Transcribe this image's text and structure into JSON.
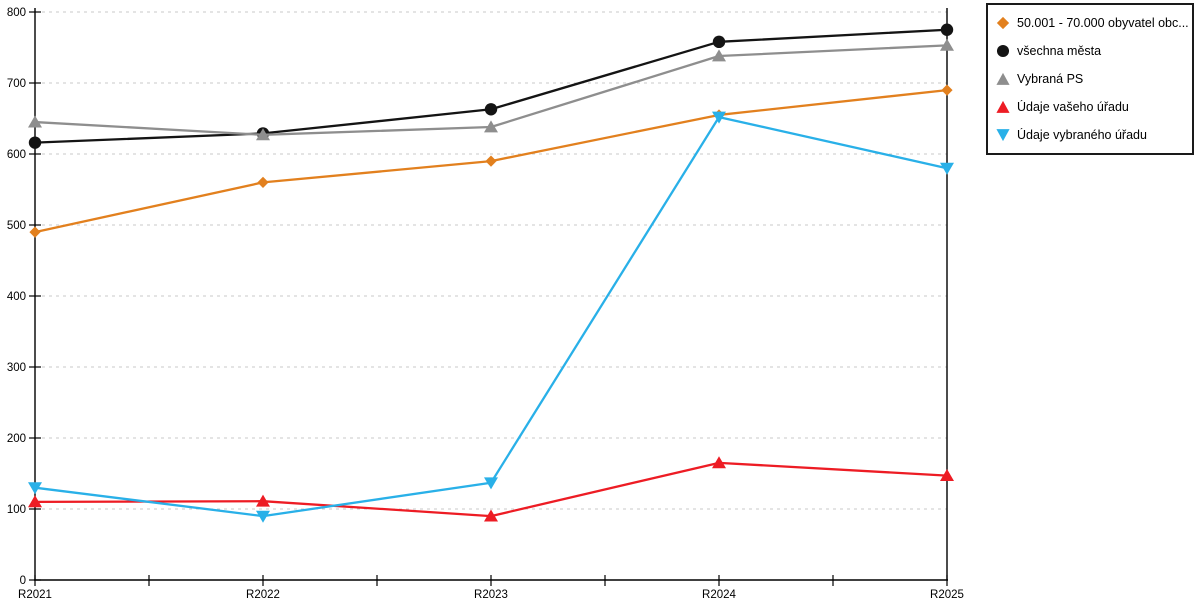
{
  "chart_data": {
    "type": "line",
    "categories": [
      "R2021",
      "R2022",
      "R2023",
      "R2024",
      "R2025"
    ],
    "y_ticks": [
      0,
      100,
      200,
      300,
      400,
      500,
      600,
      700,
      800
    ],
    "ylim": [
      0,
      800
    ],
    "grid": "horizontal-dashed",
    "gridline_color": "#c8c8c8",
    "axis_color": "#000000",
    "legend_position": "top-right",
    "series": [
      {
        "name": "50.001 - 70.000 obyvatel obc...",
        "marker": "diamond",
        "color": "#E2801E",
        "values": [
          490,
          560,
          590,
          655,
          690
        ]
      },
      {
        "name": "všechna města",
        "marker": "circle",
        "color": "#141414",
        "values": [
          616,
          629,
          663,
          758,
          775
        ]
      },
      {
        "name": "Vybraná PS",
        "marker": "triangle-up",
        "color": "#8E8E8E",
        "values": [
          645,
          627,
          638,
          738,
          753
        ]
      },
      {
        "name": "Údaje vašeho úřadu",
        "marker": "triangle-up",
        "color": "#ED1C24",
        "values": [
          110,
          111,
          90,
          165,
          147
        ]
      },
      {
        "name": "Údaje vybraného úřadu",
        "marker": "triangle-down",
        "color": "#29B0E8",
        "values": [
          130,
          90,
          137,
          652,
          580
        ]
      }
    ]
  }
}
